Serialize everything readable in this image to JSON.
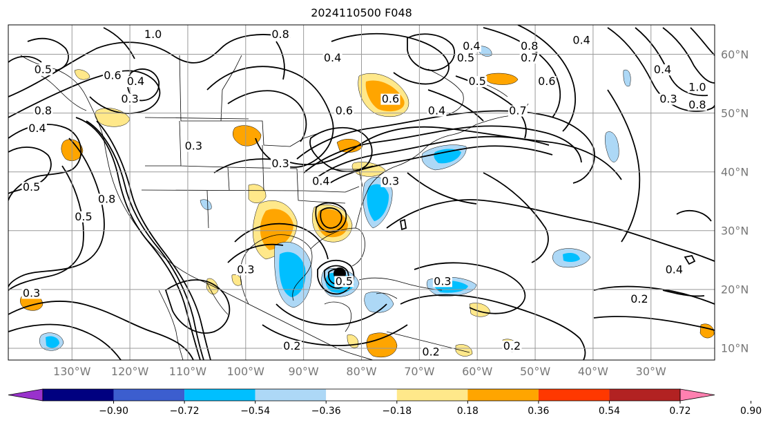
{
  "title": "2024110500 F048",
  "map": {
    "projection": "cylindrical",
    "lon_range": [
      -141,
      -19
    ],
    "lat_range": [
      8,
      65
    ],
    "lon_labels": [
      {
        "lon": -130,
        "text": "130°W"
      },
      {
        "lon": -120,
        "text": "120°W"
      },
      {
        "lon": -110,
        "text": "110°W"
      },
      {
        "lon": -100,
        "text": "100°W"
      },
      {
        "lon": -90,
        "text": "90°W"
      },
      {
        "lon": -80,
        "text": "80°W"
      },
      {
        "lon": -70,
        "text": "70°W"
      },
      {
        "lon": -60,
        "text": "60°W"
      },
      {
        "lon": -50,
        "text": "50°W"
      },
      {
        "lon": -40,
        "text": "40°W"
      },
      {
        "lon": -30,
        "text": "30°W"
      }
    ],
    "lat_labels": [
      {
        "lat": 60,
        "text": "60°N"
      },
      {
        "lat": 50,
        "text": "50°N"
      },
      {
        "lat": 40,
        "text": "40°N"
      },
      {
        "lat": 30,
        "text": "30°N"
      },
      {
        "lat": 20,
        "text": "20°N"
      },
      {
        "lat": 10,
        "text": "10°N"
      }
    ],
    "gridline_color": "#999999",
    "contour_labels": [
      {
        "text": "1.0",
        "lon": -116,
        "lat": 63
      },
      {
        "text": "0.5",
        "lon": -135,
        "lat": 57
      },
      {
        "text": "0.6",
        "lon": -123,
        "lat": 56
      },
      {
        "text": "0.4",
        "lon": -119,
        "lat": 55
      },
      {
        "text": "0.3",
        "lon": -120,
        "lat": 52
      },
      {
        "text": "0.8",
        "lon": -135,
        "lat": 50
      },
      {
        "text": "0.4",
        "lon": -136,
        "lat": 47
      },
      {
        "text": "0.5",
        "lon": -137,
        "lat": 37
      },
      {
        "text": "0.5",
        "lon": -128,
        "lat": 32
      },
      {
        "text": "0.8",
        "lon": -124,
        "lat": 35
      },
      {
        "text": "0.3",
        "lon": -137,
        "lat": 19
      },
      {
        "text": "0.8",
        "lon": -94,
        "lat": 63
      },
      {
        "text": "0.4",
        "lon": -85,
        "lat": 59
      },
      {
        "text": "0.5",
        "lon": -62,
        "lat": 59
      },
      {
        "text": "0.4",
        "lon": -61,
        "lat": 61
      },
      {
        "text": "0.8",
        "lon": -51,
        "lat": 61
      },
      {
        "text": "0.7",
        "lon": -51,
        "lat": 59
      },
      {
        "text": "0.5",
        "lon": -60,
        "lat": 55
      },
      {
        "text": "0.6",
        "lon": -75,
        "lat": 52
      },
      {
        "text": "0.4",
        "lon": -67,
        "lat": 50
      },
      {
        "text": "0.6",
        "lon": -83,
        "lat": 50
      },
      {
        "text": "0.7",
        "lon": -53,
        "lat": 50
      },
      {
        "text": "0.6",
        "lon": -48,
        "lat": 55
      },
      {
        "text": "0.4",
        "lon": -42,
        "lat": 62
      },
      {
        "text": "0.4",
        "lon": -28,
        "lat": 57
      },
      {
        "text": "0.3",
        "lon": -27,
        "lat": 52
      },
      {
        "text": "1.0",
        "lon": -22,
        "lat": 54
      },
      {
        "text": "0.8",
        "lon": -22,
        "lat": 51
      },
      {
        "text": "0.3",
        "lon": -94,
        "lat": 41
      },
      {
        "text": "0.4",
        "lon": -87,
        "lat": 38
      },
      {
        "text": "0.3",
        "lon": -109,
        "lat": 44
      },
      {
        "text": "0.3",
        "lon": -75,
        "lat": 38
      },
      {
        "text": "0.3",
        "lon": -100,
        "lat": 23
      },
      {
        "text": "0.5",
        "lon": -83,
        "lat": 21
      },
      {
        "text": "0.3",
        "lon": -66,
        "lat": 21
      },
      {
        "text": "0.2",
        "lon": -32,
        "lat": 18
      },
      {
        "text": "0.4",
        "lon": -26,
        "lat": 23
      },
      {
        "text": "0.2",
        "lon": -92,
        "lat": 10
      },
      {
        "text": "0.2",
        "lon": -68,
        "lat": 9
      },
      {
        "text": "0.2",
        "lon": -54,
        "lat": 10
      }
    ]
  },
  "colorbar": {
    "boundaries": [
      -1.08,
      -0.9,
      -0.72,
      -0.54,
      -0.36,
      -0.18,
      0.18,
      0.36,
      0.54,
      0.72,
      0.9,
      1.08
    ],
    "colors": [
      "#9932cc",
      "#000080",
      "#3c5ecf",
      "#00bfff",
      "#add8f6",
      "#ffffff",
      "#ffe88a",
      "#ffa500",
      "#ff3800",
      "#b22222",
      "#ff80b0"
    ],
    "tick_labels": [
      "−0.90",
      "−0.72",
      "−0.54",
      "−0.36",
      "−0.18",
      "0.18",
      "0.36",
      "0.54",
      "0.72",
      "0.90"
    ]
  },
  "shaded_features": [
    {
      "name": "hurricane-core",
      "lon": -85,
      "lat": 22,
      "level": "filled black"
    }
  ]
}
